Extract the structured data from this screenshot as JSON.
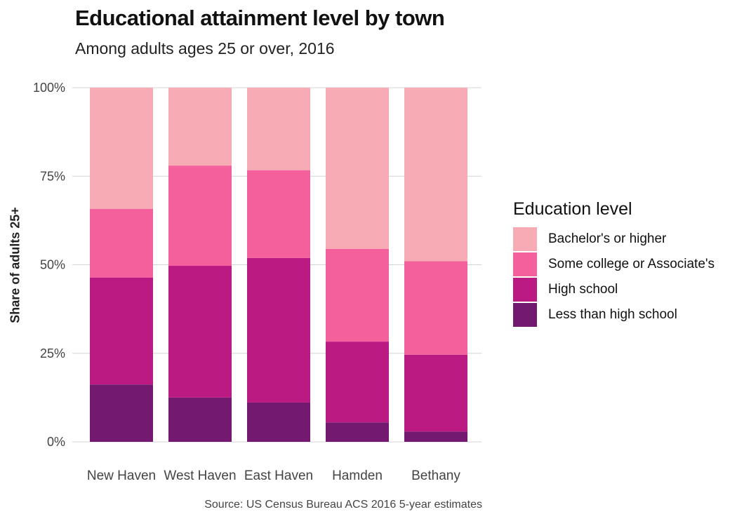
{
  "chart_data": {
    "type": "bar",
    "stacked": true,
    "title": "Educational attainment level by town",
    "subtitle": "Among adults ages 25 or over, 2016",
    "ylabel": "Share of adults 25+",
    "xlabel": "",
    "caption": "Source: US Census Bureau ACS 2016 5-year estimates",
    "categories": [
      "New Haven",
      "West Haven",
      "East Haven",
      "Hamden",
      "Bethany"
    ],
    "ylim": [
      0,
      1
    ],
    "yticks": [
      0,
      0.25,
      0.5,
      0.75,
      1.0
    ],
    "ytick_labels": [
      "0%",
      "25%",
      "50%",
      "75%",
      "100%"
    ],
    "grid": true,
    "legend_title": "Education level",
    "legend_position": "right",
    "series": [
      {
        "name": "Less than high school",
        "color": "#731a70",
        "values": [
          0.162,
          0.125,
          0.111,
          0.055,
          0.029
        ]
      },
      {
        "name": "High school",
        "color": "#bb1a83",
        "values": [
          0.302,
          0.372,
          0.408,
          0.228,
          0.217
        ]
      },
      {
        "name": "Some college or Associate's",
        "color": "#f3609c",
        "values": [
          0.194,
          0.283,
          0.248,
          0.262,
          0.264
        ]
      },
      {
        "name": "Bachelor's or higher",
        "color": "#f7abb5",
        "values": [
          0.342,
          0.22,
          0.233,
          0.455,
          0.49
        ]
      }
    ],
    "legend_order": [
      "Bachelor's or higher",
      "Some college or Associate's",
      "High school",
      "Less than high school"
    ]
  }
}
